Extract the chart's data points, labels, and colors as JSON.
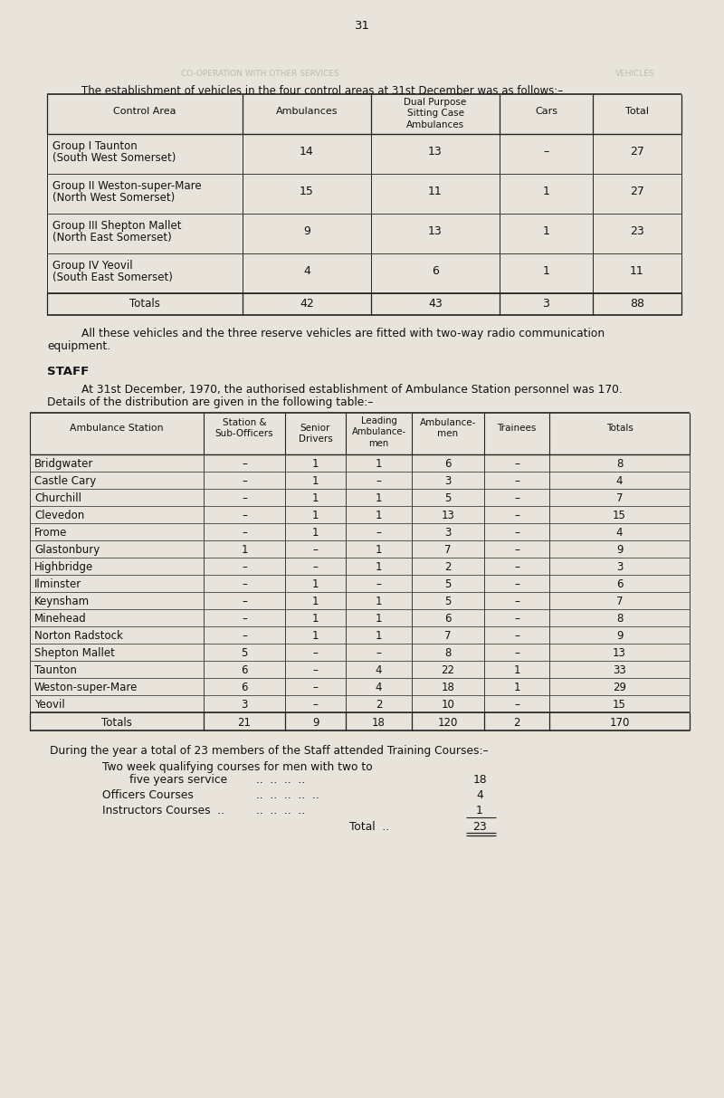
{
  "page_number": "31",
  "bg_color": "#e8e4dc",
  "table1_intro": "The establishment of vehicles in the four control areas at 31st December was as follows:–",
  "table1_headers": [
    "Control Area",
    "Ambulances",
    "Dual Purpose\nSitting Case\nAmbulances",
    "Cars",
    "Total"
  ],
  "table1_rows": [
    [
      "Group I Taunton\n(South West Somerset)",
      "14",
      "13",
      "–",
      "27"
    ],
    [
      "Group II Weston-super-Mare\n(North West Somerset)",
      "15",
      "11",
      "1",
      "27"
    ],
    [
      "Group III Shepton Mallet\n(North East Somerset)",
      "9",
      "13",
      "1",
      "23"
    ],
    [
      "Group IV Yeovil\n(South East Somerset)",
      "4",
      "6",
      "1",
      "11"
    ]
  ],
  "table1_totals": [
    "Totals",
    "42",
    "43",
    "3",
    "88"
  ],
  "para1a": "        All these vehicles and the three reserve vehicles are fitted with two-way radio communication",
  "para1b": "equipment.",
  "staff_header": "STAFF",
  "para2a": "        At 31st December, 1970, the authorised establishment of Ambulance Station personnel was 170.",
  "para2b": "Details of the distribution are given in the following table:–",
  "table2_headers": [
    "Ambulance Station",
    "Station &\nSub-Officers",
    "Senior\nDrivers",
    "Leading\nAmbulance-\nmen",
    "Ambulance-\nmen",
    "Trainees",
    "Totals"
  ],
  "table2_rows": [
    [
      "Bridgwater",
      "–",
      "1",
      "1",
      "6",
      "–",
      "8"
    ],
    [
      "Castle Cary",
      "–",
      "1",
      "–",
      "3",
      "–",
      "4"
    ],
    [
      "Churchill",
      "–",
      "1",
      "1",
      "5",
      "–",
      "7"
    ],
    [
      "Clevedon",
      "–",
      "1",
      "1",
      "13",
      "–",
      "15"
    ],
    [
      "Frome",
      "–",
      "1",
      "–",
      "3",
      "–",
      "4"
    ],
    [
      "Glastonbury",
      "1",
      "–",
      "1",
      "7",
      "–",
      "9"
    ],
    [
      "Highbridge",
      "–",
      "–",
      "1",
      "2",
      "–",
      "3"
    ],
    [
      "Ilminster",
      "–",
      "1",
      "–",
      "5",
      "–",
      "6"
    ],
    [
      "Keynsham",
      "–",
      "1",
      "1",
      "5",
      "–",
      "7"
    ],
    [
      "Minehead",
      "–",
      "1",
      "1",
      "6",
      "–",
      "8"
    ],
    [
      "Norton Radstock",
      "–",
      "1",
      "1",
      "7",
      "–",
      "9"
    ],
    [
      "Shepton Mallet",
      "5",
      "–",
      "–",
      "8",
      "–",
      "13"
    ],
    [
      "Taunton",
      "6",
      "–",
      "4",
      "22",
      "1",
      "33"
    ],
    [
      "Weston-super-Mare",
      "6",
      "–",
      "4",
      "18",
      "1",
      "29"
    ],
    [
      "Yeovil",
      "3",
      "–",
      "2",
      "10",
      "–",
      "15"
    ]
  ],
  "table2_totals": [
    "Totals",
    "21",
    "9",
    "18",
    "120",
    "2",
    "170"
  ],
  "para3": "        During the year a total of 23 members of the Staff attended Training Courses:–",
  "training_rows": [
    [
      "Two week qualifying courses for men with two to",
      "",
      ""
    ],
    [
      "            five years service",
      "..  ..  ..  ..",
      "18"
    ],
    [
      "Officers Courses",
      "..  ..  ..  ..  ..",
      "4"
    ],
    [
      "Instructors Courses  ..",
      "..  ..  ..  ..",
      "1"
    ]
  ],
  "training_total_label": "Total  ..",
  "training_total_val": "23"
}
